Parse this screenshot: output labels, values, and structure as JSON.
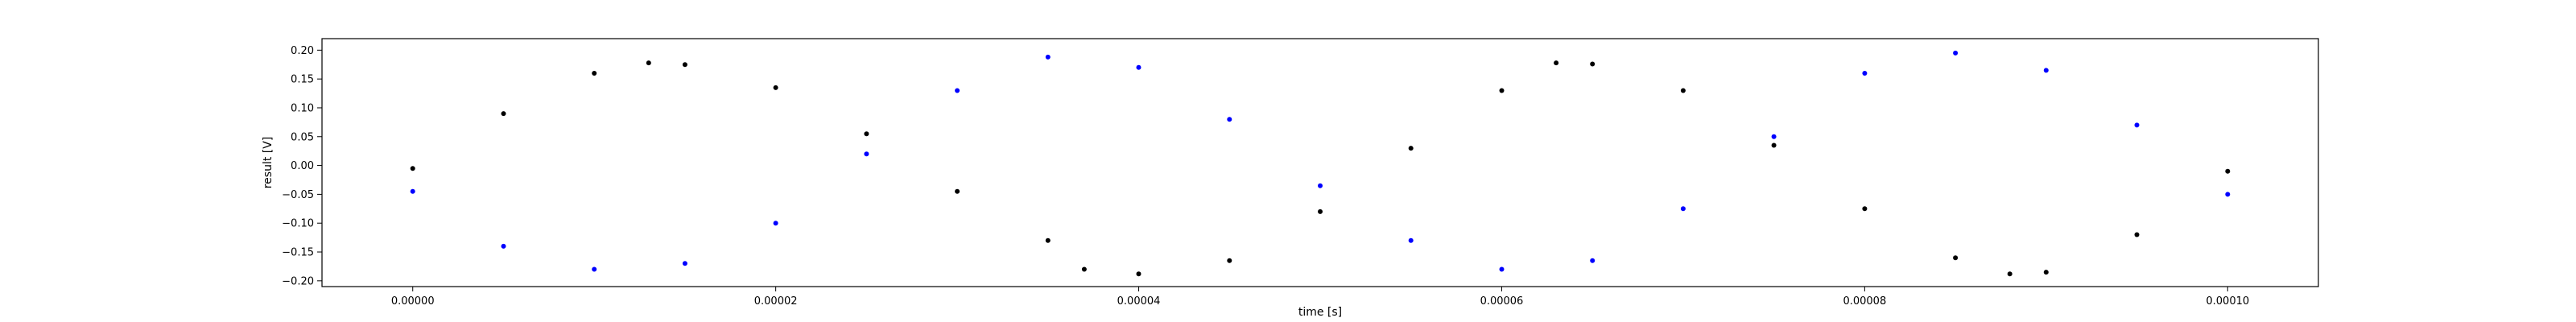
{
  "chart_data": {
    "type": "scatter",
    "xlabel": "time [s]",
    "ylabel": "result [V]",
    "xlim": [
      -5e-06,
      0.000105
    ],
    "ylim": [
      -0.21,
      0.22
    ],
    "x_ticks": [
      0,
      2e-05,
      4e-05,
      6e-05,
      8e-05,
      0.0001
    ],
    "x_tick_labels": [
      "0.00000",
      "0.00002",
      "0.00004",
      "0.00006",
      "0.00008",
      "0.00010"
    ],
    "y_ticks": [
      -0.2,
      -0.15,
      -0.1,
      -0.05,
      0,
      0.05,
      0.1,
      0.15,
      0.2
    ],
    "y_tick_labels": [
      "−0.20",
      "−0.15",
      "−0.10",
      "−0.05",
      "0.00",
      "0.05",
      "0.10",
      "0.15",
      "0.20"
    ],
    "grid": false,
    "legend": "none",
    "series": [
      {
        "color": "#000000",
        "x": [
          0,
          5e-06,
          1e-05,
          1.3e-05,
          1.5e-05,
          2e-05,
          2.5e-05,
          3e-05,
          3.5e-05,
          3.7e-05,
          4e-05,
          4.5e-05,
          5e-05,
          5.5e-05,
          6e-05,
          6.3e-05,
          6.5e-05,
          7e-05,
          7.5e-05,
          8e-05,
          8.5e-05,
          8.8e-05,
          9e-05,
          9.5e-05,
          0.0001
        ],
        "y": [
          -0.005,
          0.09,
          0.16,
          0.178,
          0.175,
          0.135,
          0.055,
          -0.045,
          -0.13,
          -0.18,
          -0.188,
          -0.165,
          -0.08,
          0.03,
          0.13,
          0.178,
          0.176,
          0.13,
          0.035,
          -0.075,
          -0.16,
          -0.188,
          -0.185,
          -0.12,
          -0.01
        ]
      },
      {
        "color": "#0000ff",
        "x": [
          0,
          5e-06,
          1e-05,
          1.5e-05,
          2e-05,
          2.5e-05,
          3e-05,
          3.5e-05,
          4e-05,
          4.5e-05,
          5e-05,
          5.5e-05,
          6e-05,
          6.5e-05,
          7e-05,
          7.5e-05,
          8e-05,
          8.5e-05,
          9e-05,
          9.5e-05,
          0.0001
        ],
        "y": [
          -0.045,
          -0.14,
          -0.18,
          -0.17,
          -0.1,
          0.02,
          0.13,
          0.188,
          0.17,
          0.08,
          -0.035,
          -0.13,
          -0.18,
          -0.165,
          -0.075,
          0.05,
          0.16,
          0.195,
          0.165,
          0.07,
          -0.05
        ]
      }
    ]
  }
}
